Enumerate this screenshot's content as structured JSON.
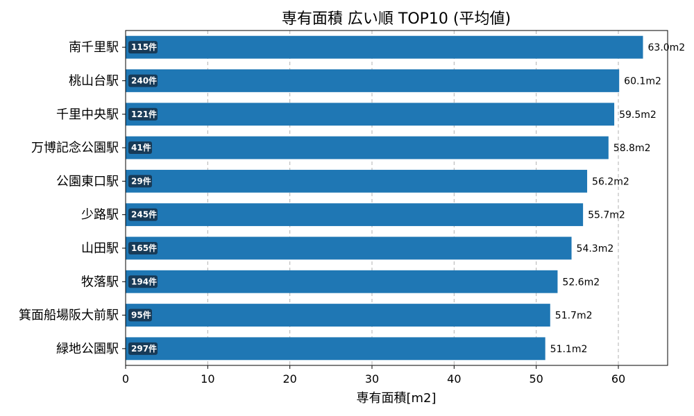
{
  "chart_data": {
    "type": "bar",
    "orientation": "horizontal",
    "title": "専有面積 広い順 TOP10 (平均値)",
    "xlabel": "専有面積[m2]",
    "ylabel": "",
    "xlim": [
      0,
      66
    ],
    "xticks": [
      0,
      10,
      20,
      30,
      40,
      50,
      60
    ],
    "grid": "x-dashed",
    "categories": [
      "南千里駅",
      "桃山台駅",
      "千里中央駅",
      "万博記念公園駅",
      "公園東口駅",
      "少路駅",
      "山田駅",
      "牧落駅",
      "箕面船場阪大前駅",
      "緑地公園駅"
    ],
    "values": [
      63.0,
      60.1,
      59.5,
      58.8,
      56.2,
      55.7,
      54.3,
      52.6,
      51.7,
      51.1
    ],
    "value_labels": [
      "63.0m2",
      "60.1m2",
      "59.5m2",
      "58.8m2",
      "56.2m2",
      "55.7m2",
      "54.3m2",
      "52.6m2",
      "51.7m2",
      "51.1m2"
    ],
    "counts": [
      "115件",
      "240件",
      "121件",
      "41件",
      "29件",
      "245件",
      "165件",
      "194件",
      "95件",
      "297件"
    ],
    "colors": {
      "bar": "#1f77b4",
      "count_badge": "#173a57",
      "grid": "#b0b0b0"
    }
  }
}
